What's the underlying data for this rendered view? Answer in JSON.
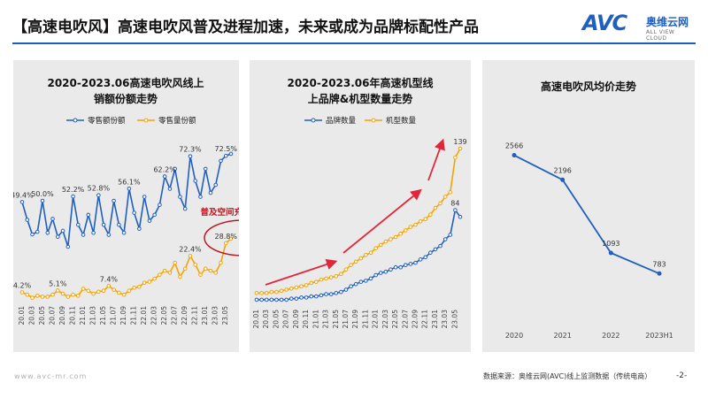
{
  "header": {
    "title": "【高速电吹风】高速电吹风普及进程加速，未来或成为品牌标配性产品",
    "logo_text": "AVC",
    "logo_cn": "奥维云网",
    "logo_en": "ALL VIEW CLOUD"
  },
  "footer": {
    "url": "www.avc-mr.com",
    "source": "数据来源：奥维云网(AVC)线上监测数据（传统电商）",
    "page": "-2-"
  },
  "colors": {
    "blue": "#1f5fbf",
    "orange": "#f5a300",
    "red": "#e2263a",
    "brand": "#1f5fbf"
  },
  "chart_data": [
    {
      "type": "line",
      "title_line1": "2020-2023.06高速电吹风线上",
      "title_line2": "销额份额走势",
      "categories": [
        "20.01",
        "20.02",
        "20.03",
        "20.04",
        "20.05",
        "20.06",
        "20.07",
        "20.08",
        "20.09",
        "20.10",
        "20.11",
        "20.12",
        "21.01",
        "21.02",
        "21.03",
        "21.04",
        "21.05",
        "21.06",
        "21.07",
        "21.08",
        "21.09",
        "21.10",
        "21.11",
        "21.12",
        "22.01",
        "22.02",
        "22.03",
        "22.04",
        "22.05",
        "22.06",
        "22.07",
        "22.08",
        "22.09",
        "22.10",
        "22.11",
        "22.12",
        "23.01",
        "23.02",
        "23.03",
        "23.04",
        "23.05",
        "23.06"
      ],
      "tick_labels": [
        "20.01",
        "20.03",
        "20.05",
        "20.07",
        "20.09",
        "20.11",
        "21.01",
        "21.03",
        "21.05",
        "21.07",
        "21.09",
        "21.11",
        "22.01",
        "22.03",
        "22.05",
        "22.07",
        "22.09",
        "22.11",
        "23.01",
        "23.03",
        "23.05"
      ],
      "ylim": [
        0,
        85
      ],
      "series": [
        {
          "name": "零售额份额",
          "color": "#1f5fbf",
          "values": [
            49.4,
            40.5,
            33.2,
            34.5,
            50.0,
            34.0,
            41.0,
            32.0,
            35.0,
            27.0,
            52.2,
            38.0,
            33.0,
            43.0,
            34.0,
            52.8,
            38.0,
            33.0,
            50.0,
            38.0,
            34.0,
            56.1,
            44.0,
            36.0,
            52.0,
            40.0,
            43.0,
            48.0,
            62.2,
            56.0,
            66.0,
            52.0,
            46.0,
            72.3,
            60.0,
            52.0,
            66.0,
            54.0,
            58.0,
            70.0,
            72.5,
            73.5
          ]
        },
        {
          "name": "零售量份额",
          "color": "#f5a300",
          "values": [
            4.2,
            3.0,
            1.5,
            2.5,
            2.0,
            2.0,
            3.0,
            5.1,
            3.5,
            2.0,
            3.0,
            2.5,
            6.0,
            5.0,
            3.5,
            4.5,
            5.0,
            7.4,
            5.5,
            4.0,
            3.0,
            5.0,
            6.5,
            7.0,
            9.0,
            9.5,
            11.0,
            13.0,
            15.0,
            14.0,
            19.0,
            12.0,
            16.0,
            22.4,
            18.0,
            13.0,
            16.0,
            15.0,
            14.0,
            19.0,
            28.8,
            31.0
          ]
        }
      ],
      "data_labels": [
        {
          "text": "49.4%",
          "series": 0,
          "index": 0
        },
        {
          "text": "50.0%",
          "series": 0,
          "index": 4
        },
        {
          "text": "52.2%",
          "series": 0,
          "index": 10
        },
        {
          "text": "52.8%",
          "series": 0,
          "index": 15
        },
        {
          "text": "56.1%",
          "series": 0,
          "index": 21
        },
        {
          "text": "62.2%",
          "series": 0,
          "index": 28
        },
        {
          "text": "72.3%",
          "series": 0,
          "index": 33
        },
        {
          "text": "72.5%",
          "series": 0,
          "index": 40
        },
        {
          "text": "4.2%",
          "series": 1,
          "index": 0
        },
        {
          "text": "5.1%",
          "series": 1,
          "index": 7
        },
        {
          "text": "7.4%",
          "series": 1,
          "index": 17
        },
        {
          "text": "22.4%",
          "series": 1,
          "index": 33
        },
        {
          "text": "28.8%",
          "series": 1,
          "index": 40
        }
      ],
      "annotation": "普及空间充足"
    },
    {
      "type": "line",
      "title_line1": "2020-2023.06年高速机型线",
      "title_line2": "上品牌&机型数量走势",
      "categories": [
        "20.01",
        "20.02",
        "20.03",
        "20.04",
        "20.05",
        "20.06",
        "20.07",
        "20.08",
        "20.09",
        "20.10",
        "20.11",
        "20.12",
        "21.01",
        "21.02",
        "21.03",
        "21.04",
        "21.05",
        "21.06",
        "21.07",
        "21.08",
        "21.09",
        "21.10",
        "21.11",
        "21.12",
        "22.01",
        "22.02",
        "22.03",
        "22.04",
        "22.05",
        "22.06",
        "22.07",
        "22.08",
        "22.09",
        "22.10",
        "22.11",
        "22.12",
        "23.01",
        "23.02",
        "23.03",
        "23.04",
        "23.05",
        "23.06"
      ],
      "tick_labels": [
        "20.01",
        "20.03",
        "20.05",
        "20.07",
        "20.09",
        "20.11",
        "21.01",
        "21.03",
        "21.05",
        "21.07",
        "21.09",
        "21.11",
        "22.01",
        "22.03",
        "22.05",
        "22.07",
        "22.09",
        "22.11",
        "23.01",
        "23.03",
        "23.05"
      ],
      "ylim": [
        0,
        150
      ],
      "series": [
        {
          "name": "品牌数量",
          "color": "#1f5fbf",
          "values": [
            4,
            4,
            4,
            4,
            4,
            4,
            4,
            5,
            5,
            6,
            6,
            7,
            7,
            8,
            9,
            9,
            10,
            11,
            13,
            16,
            18,
            20,
            21,
            23,
            26,
            28,
            29,
            31,
            33,
            33,
            35,
            36,
            37,
            40,
            42,
            46,
            49,
            52,
            58,
            62,
            84,
            78
          ]
        },
        {
          "name": "机型数量",
          "color": "#f5a300",
          "values": [
            10,
            10,
            10,
            11,
            11,
            12,
            13,
            14,
            15,
            16,
            17,
            19,
            20,
            22,
            23,
            24,
            25,
            27,
            31,
            35,
            38,
            41,
            44,
            46,
            50,
            53,
            56,
            58,
            60,
            63,
            66,
            69,
            71,
            74,
            76,
            80,
            86,
            90,
            96,
            100,
            131,
            139
          ]
        }
      ],
      "data_labels": [
        {
          "text": "139",
          "series": 1,
          "index": 41
        },
        {
          "text": "84",
          "series": 0,
          "index": 40
        }
      ]
    },
    {
      "type": "line",
      "title": "高速电吹风均价走势",
      "categories": [
        "2020",
        "2021",
        "2022",
        "2023H1"
      ],
      "values": [
        2566,
        2196,
        1093,
        783
      ],
      "ylim": [
        0,
        3200
      ],
      "color": "#1f5fbf"
    }
  ]
}
